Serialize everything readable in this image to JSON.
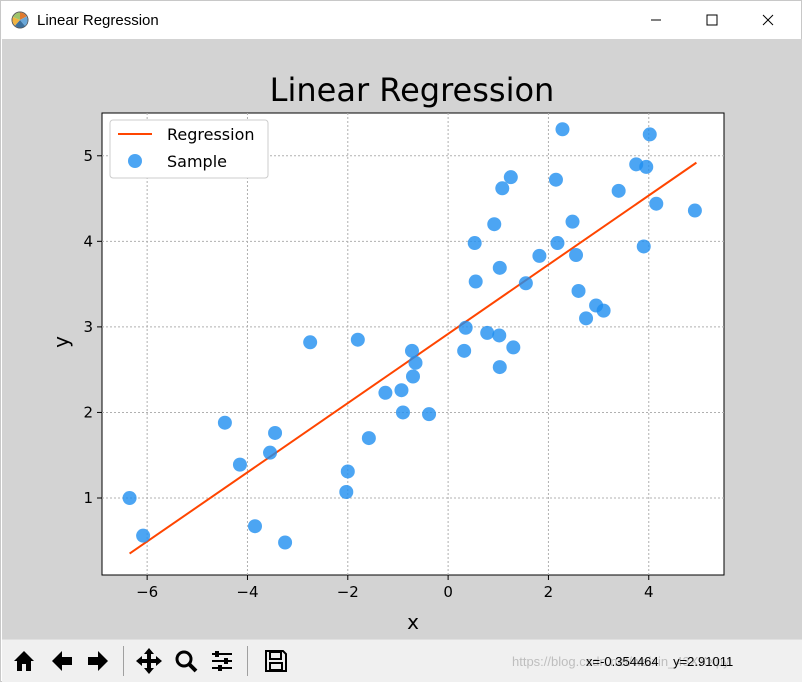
{
  "window": {
    "title": "Linear Regression",
    "controls": {
      "minimize": "minimize-icon",
      "maximize": "maximize-icon",
      "close": "close-icon"
    }
  },
  "chart_data": {
    "type": "scatter",
    "title": "Linear Regression",
    "xlabel": "x",
    "ylabel": "y",
    "xlim": [
      -6.9,
      5.5
    ],
    "ylim": [
      0.1,
      5.5
    ],
    "xticks": [
      -6,
      -4,
      -2,
      0,
      2,
      4
    ],
    "yticks": [
      1,
      2,
      3,
      4,
      5
    ],
    "grid": true,
    "legend_position": "top-left",
    "series": [
      {
        "name": "Regression",
        "kind": "line",
        "color": "#ff4500",
        "points": [
          [
            -6.35,
            0.35
          ],
          [
            4.95,
            4.92
          ]
        ]
      },
      {
        "name": "Sample",
        "kind": "scatter",
        "color": "#1f8ff0",
        "points": [
          [
            -6.35,
            1.0
          ],
          [
            -6.08,
            0.56
          ],
          [
            -4.45,
            1.88
          ],
          [
            -4.15,
            1.39
          ],
          [
            -3.85,
            0.67
          ],
          [
            -3.55,
            1.53
          ],
          [
            -3.45,
            1.76
          ],
          [
            -3.25,
            0.48
          ],
          [
            -2.75,
            2.82
          ],
          [
            -2.03,
            1.07
          ],
          [
            -2.0,
            1.31
          ],
          [
            -1.8,
            2.85
          ],
          [
            -1.58,
            1.7
          ],
          [
            -1.25,
            2.23
          ],
          [
            -0.93,
            2.26
          ],
          [
            -0.9,
            2.0
          ],
          [
            -0.72,
            2.72
          ],
          [
            -0.7,
            2.42
          ],
          [
            -0.65,
            2.58
          ],
          [
            -0.38,
            1.98
          ],
          [
            0.32,
            2.72
          ],
          [
            0.35,
            2.99
          ],
          [
            0.53,
            3.98
          ],
          [
            0.55,
            3.53
          ],
          [
            0.78,
            2.93
          ],
          [
            0.92,
            4.2
          ],
          [
            1.02,
            2.9
          ],
          [
            1.03,
            3.69
          ],
          [
            1.03,
            2.53
          ],
          [
            1.08,
            4.62
          ],
          [
            1.25,
            4.75
          ],
          [
            1.3,
            2.76
          ],
          [
            1.55,
            3.51
          ],
          [
            1.82,
            3.83
          ],
          [
            2.15,
            4.72
          ],
          [
            2.18,
            3.98
          ],
          [
            2.28,
            5.31
          ],
          [
            2.48,
            4.23
          ],
          [
            2.55,
            3.84
          ],
          [
            2.6,
            3.42
          ],
          [
            2.75,
            3.1
          ],
          [
            2.95,
            3.25
          ],
          [
            3.1,
            3.19
          ],
          [
            3.4,
            4.59
          ],
          [
            3.75,
            4.9
          ],
          [
            3.9,
            3.94
          ],
          [
            3.95,
            4.87
          ],
          [
            4.02,
            5.25
          ],
          [
            4.15,
            4.44
          ],
          [
            4.92,
            4.36
          ]
        ]
      }
    ]
  },
  "toolbar": {
    "buttons": [
      "home-icon",
      "back-icon",
      "forward-icon",
      "pan-icon",
      "zoom-icon",
      "configure-subplots-icon",
      "save-icon"
    ],
    "coords": "x=-0.354464    y=2.91011",
    "watermark": "https://blog.csdn.net/weixin_43XXXpy"
  }
}
